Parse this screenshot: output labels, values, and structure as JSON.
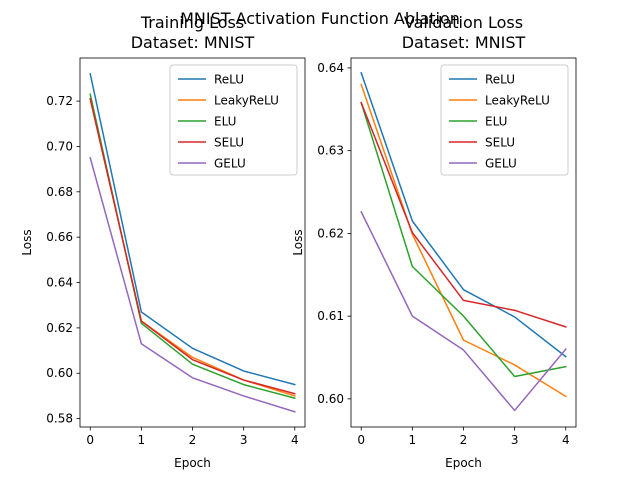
{
  "figure_title": "MNIST Activation Function Ablation",
  "chart_data": [
    {
      "type": "line",
      "title_lines": [
        "Training Loss",
        "Dataset: MNIST"
      ],
      "xlabel": "Epoch",
      "ylabel": "Loss",
      "x": [
        0,
        1,
        2,
        3,
        4
      ],
      "xlim": [
        -0.2,
        4.2
      ],
      "ylim": [
        0.5763,
        0.739
      ],
      "xticks": [
        0,
        1,
        2,
        3,
        4
      ],
      "yticks": [
        0.58,
        0.6,
        0.62,
        0.64,
        0.66,
        0.68,
        0.7,
        0.72
      ],
      "ytick_labels": [
        "0.58",
        "0.60",
        "0.62",
        "0.64",
        "0.66",
        "0.68",
        "0.70",
        "0.72"
      ],
      "grid": false,
      "legend_position": "top-right",
      "series": [
        {
          "name": "ReLU",
          "color": "#1f77b4",
          "values": [
            0.732,
            0.627,
            0.611,
            0.601,
            0.595
          ]
        },
        {
          "name": "LeakyReLU",
          "color": "#ff7f0e",
          "values": [
            0.721,
            0.623,
            0.607,
            0.597,
            0.59
          ]
        },
        {
          "name": "ELU",
          "color": "#2ca02c",
          "values": [
            0.723,
            0.622,
            0.604,
            0.595,
            0.589
          ]
        },
        {
          "name": "SELU",
          "color": "#d62728",
          "values": [
            0.721,
            0.623,
            0.606,
            0.597,
            0.591
          ]
        },
        {
          "name": "GELU",
          "color": "#9467bd",
          "values": [
            0.695,
            0.613,
            0.598,
            0.59,
            0.583
          ]
        }
      ]
    },
    {
      "type": "line",
      "title_lines": [
        "Validation Loss",
        "Dataset: MNIST"
      ],
      "xlabel": "Epoch",
      "ylabel": "Loss",
      "x": [
        0,
        1,
        2,
        3,
        4
      ],
      "xlim": [
        -0.2,
        4.2
      ],
      "ylim": [
        0.5966,
        0.6412
      ],
      "xticks": [
        0,
        1,
        2,
        3,
        4
      ],
      "yticks": [
        0.6,
        0.61,
        0.62,
        0.63,
        0.64
      ],
      "ytick_labels": [
        "0.60",
        "0.61",
        "0.62",
        "0.63",
        "0.64"
      ],
      "grid": false,
      "legend_position": "top-right",
      "series": [
        {
          "name": "ReLU",
          "color": "#1f77b4",
          "values": [
            0.6394,
            0.6215,
            0.6132,
            0.6099,
            0.6051
          ]
        },
        {
          "name": "LeakyReLU",
          "color": "#ff7f0e",
          "values": [
            0.638,
            0.6199,
            0.6071,
            0.6041,
            0.6003
          ]
        },
        {
          "name": "ELU",
          "color": "#2ca02c",
          "values": [
            0.6358,
            0.616,
            0.61,
            0.6027,
            0.6039
          ]
        },
        {
          "name": "SELU",
          "color": "#d62728",
          "values": [
            0.6358,
            0.6201,
            0.6119,
            0.6107,
            0.6087
          ]
        },
        {
          "name": "GELU",
          "color": "#9467bd",
          "values": [
            0.6226,
            0.61,
            0.6059,
            0.5986,
            0.606
          ]
        }
      ]
    }
  ]
}
